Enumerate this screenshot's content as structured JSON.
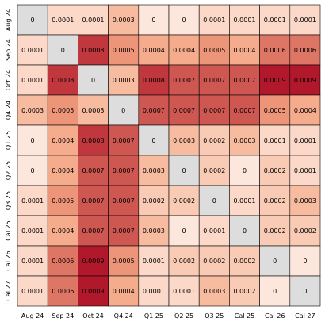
{
  "chart_data": {
    "type": "heatmap",
    "title": "",
    "xlabel": "",
    "ylabel": "",
    "x_labels": [
      "Aug 24",
      "Sep 24",
      "Oct 24",
      "Q4 24",
      "Q1 25",
      "Q2 25",
      "Q3 25",
      "Cal 25",
      "Cal 26",
      "Cal 27"
    ],
    "y_labels": [
      "Aug 24",
      "Sep 24",
      "Oct 24",
      "Q4 24",
      "Q1 25",
      "Q2 25",
      "Q3 25",
      "Cal 25",
      "Cal 26",
      "Cal 27"
    ],
    "values": [
      [
        0,
        0.0001,
        0.0001,
        0.0003,
        0,
        0,
        0.0001,
        0.0001,
        0.0001,
        0.0001
      ],
      [
        0.0001,
        0,
        0.0008,
        0.0005,
        0.0004,
        0.0004,
        0.0005,
        0.0004,
        0.0006,
        0.0006
      ],
      [
        0.0001,
        0.0008,
        0,
        0.0003,
        0.0008,
        0.0007,
        0.0007,
        0.0007,
        0.0009,
        0.0009
      ],
      [
        0.0003,
        0.0005,
        0.0003,
        0,
        0.0007,
        0.0007,
        0.0007,
        0.0007,
        0.0005,
        0.0004
      ],
      [
        0,
        0.0004,
        0.0008,
        0.0007,
        0,
        0.0003,
        0.0002,
        0.0003,
        0.0001,
        0.0001
      ],
      [
        0,
        0.0004,
        0.0007,
        0.0007,
        0.0003,
        0,
        0.0002,
        0,
        0.0002,
        0.0001
      ],
      [
        0.0001,
        0.0005,
        0.0007,
        0.0007,
        0.0002,
        0.0002,
        0,
        0.0001,
        0.0002,
        0.0003
      ],
      [
        0.0001,
        0.0004,
        0.0007,
        0.0007,
        0.0003,
        0,
        0.0001,
        0,
        0.0002,
        0.0002
      ],
      [
        0.0001,
        0.0006,
        0.0009,
        0.0005,
        0.0001,
        0.0002,
        0.0002,
        0.0002,
        0,
        0
      ],
      [
        0.0001,
        0.0006,
        0.0009,
        0.0004,
        0.0001,
        0.0001,
        0.0003,
        0.0002,
        0,
        0
      ]
    ],
    "diagonal_masked": true,
    "colormap": "Reds",
    "vmin": 0,
    "vmax": 0.0009,
    "grid": true,
    "legend": "none",
    "colors": {
      "low": "#fde7dc",
      "mid": "#f4a582",
      "high": "#b2182b",
      "masked": "#dddddd",
      "gridline": "#000000"
    }
  }
}
